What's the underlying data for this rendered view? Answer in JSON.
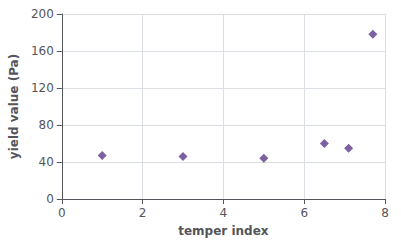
{
  "chart_data": {
    "type": "scatter",
    "x": [
      1,
      3,
      5,
      6.5,
      7.1,
      7.7
    ],
    "values": [
      47,
      46,
      44,
      60,
      55,
      178
    ],
    "color": "#5B3A8A",
    "marker": "diamond",
    "xlabel": "temper index",
    "ylabel": "yield value (Pa)",
    "xlim": [
      0,
      8
    ],
    "ylim": [
      0,
      200
    ],
    "xticks": [
      0,
      2,
      4,
      6,
      8
    ],
    "yticks": [
      0,
      40,
      80,
      120,
      160,
      200
    ],
    "grid": true
  }
}
